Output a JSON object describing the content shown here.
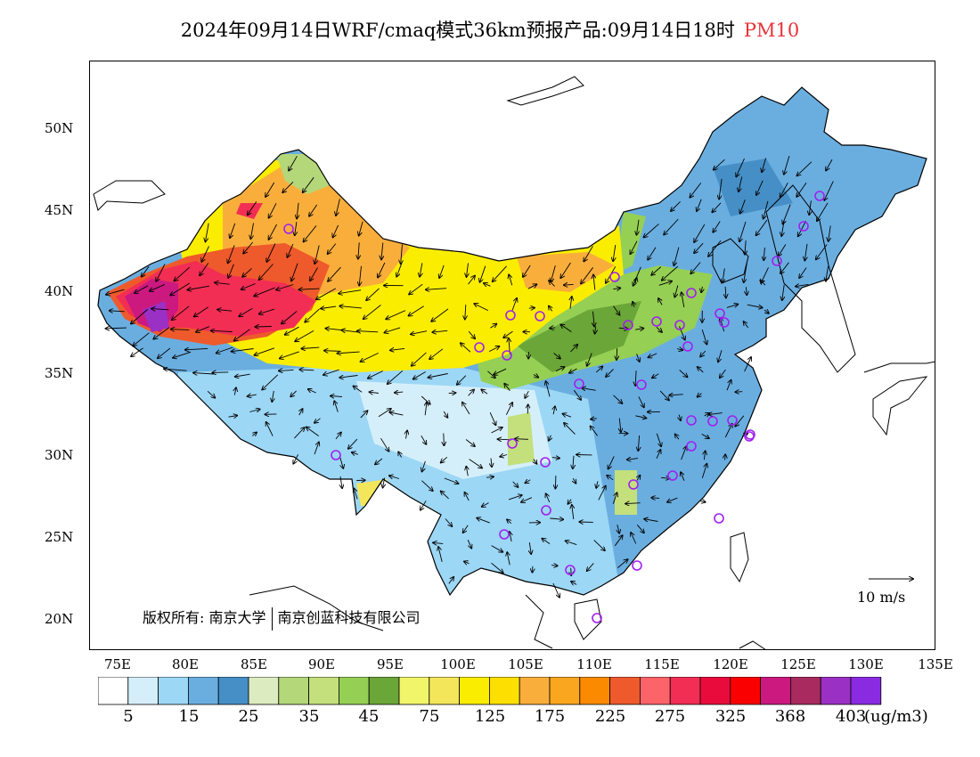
{
  "title": {
    "main": "2024年09月14日WRF/cmaq模式36km预报产品:09月14日18时",
    "pollutant": "PM10"
  },
  "axes": {
    "lat_labels": [
      "50N",
      "45N",
      "40N",
      "35N",
      "30N",
      "25N",
      "20N"
    ],
    "lon_labels": [
      "75E",
      "80E",
      "85E",
      "90E",
      "95E",
      "100E",
      "105E",
      "110E",
      "115E",
      "120E",
      "125E",
      "130E",
      "135E"
    ]
  },
  "copyright": {
    "prefix": "版权所有:",
    "org1": "南京大学",
    "org2": "南京创蓝科技有限公司"
  },
  "wind_scale": {
    "label": "10 m/s",
    "speed_ms": 10
  },
  "colorbar": {
    "unit": "(ug/m3)",
    "tick_labels": [
      "5",
      "15",
      "25",
      "35",
      "45",
      "75",
      "125",
      "175",
      "225",
      "275",
      "325",
      "368",
      "403"
    ],
    "colors": [
      "#ffffff",
      "#d5effa",
      "#9cd7f5",
      "#6aaee0",
      "#458fc6",
      "#dcecc0",
      "#b4d77a",
      "#c3e07c",
      "#95cf54",
      "#6ba638",
      "#f1f56a",
      "#f3e65a",
      "#fbed00",
      "#fde002",
      "#f9ae3c",
      "#fba61f",
      "#fb8a00",
      "#ee5a2b",
      "#fd646a",
      "#f22e54",
      "#ea0b3d",
      "#fb0000",
      "#cb1980",
      "#a82a5e",
      "#9b30c4",
      "#8a2be2"
    ]
  },
  "map": {
    "pm10_hotspots": [
      {
        "region": "southern-xinjiang-west",
        "level": "403"
      },
      {
        "region": "tarim-basin",
        "level": "325"
      },
      {
        "region": "gobi-inner-mongolia",
        "level": "125"
      },
      {
        "region": "tibet-plateau",
        "level": "15"
      },
      {
        "region": "northeast-china",
        "level": "25"
      }
    ],
    "station_marker_color": "#a020f0"
  }
}
